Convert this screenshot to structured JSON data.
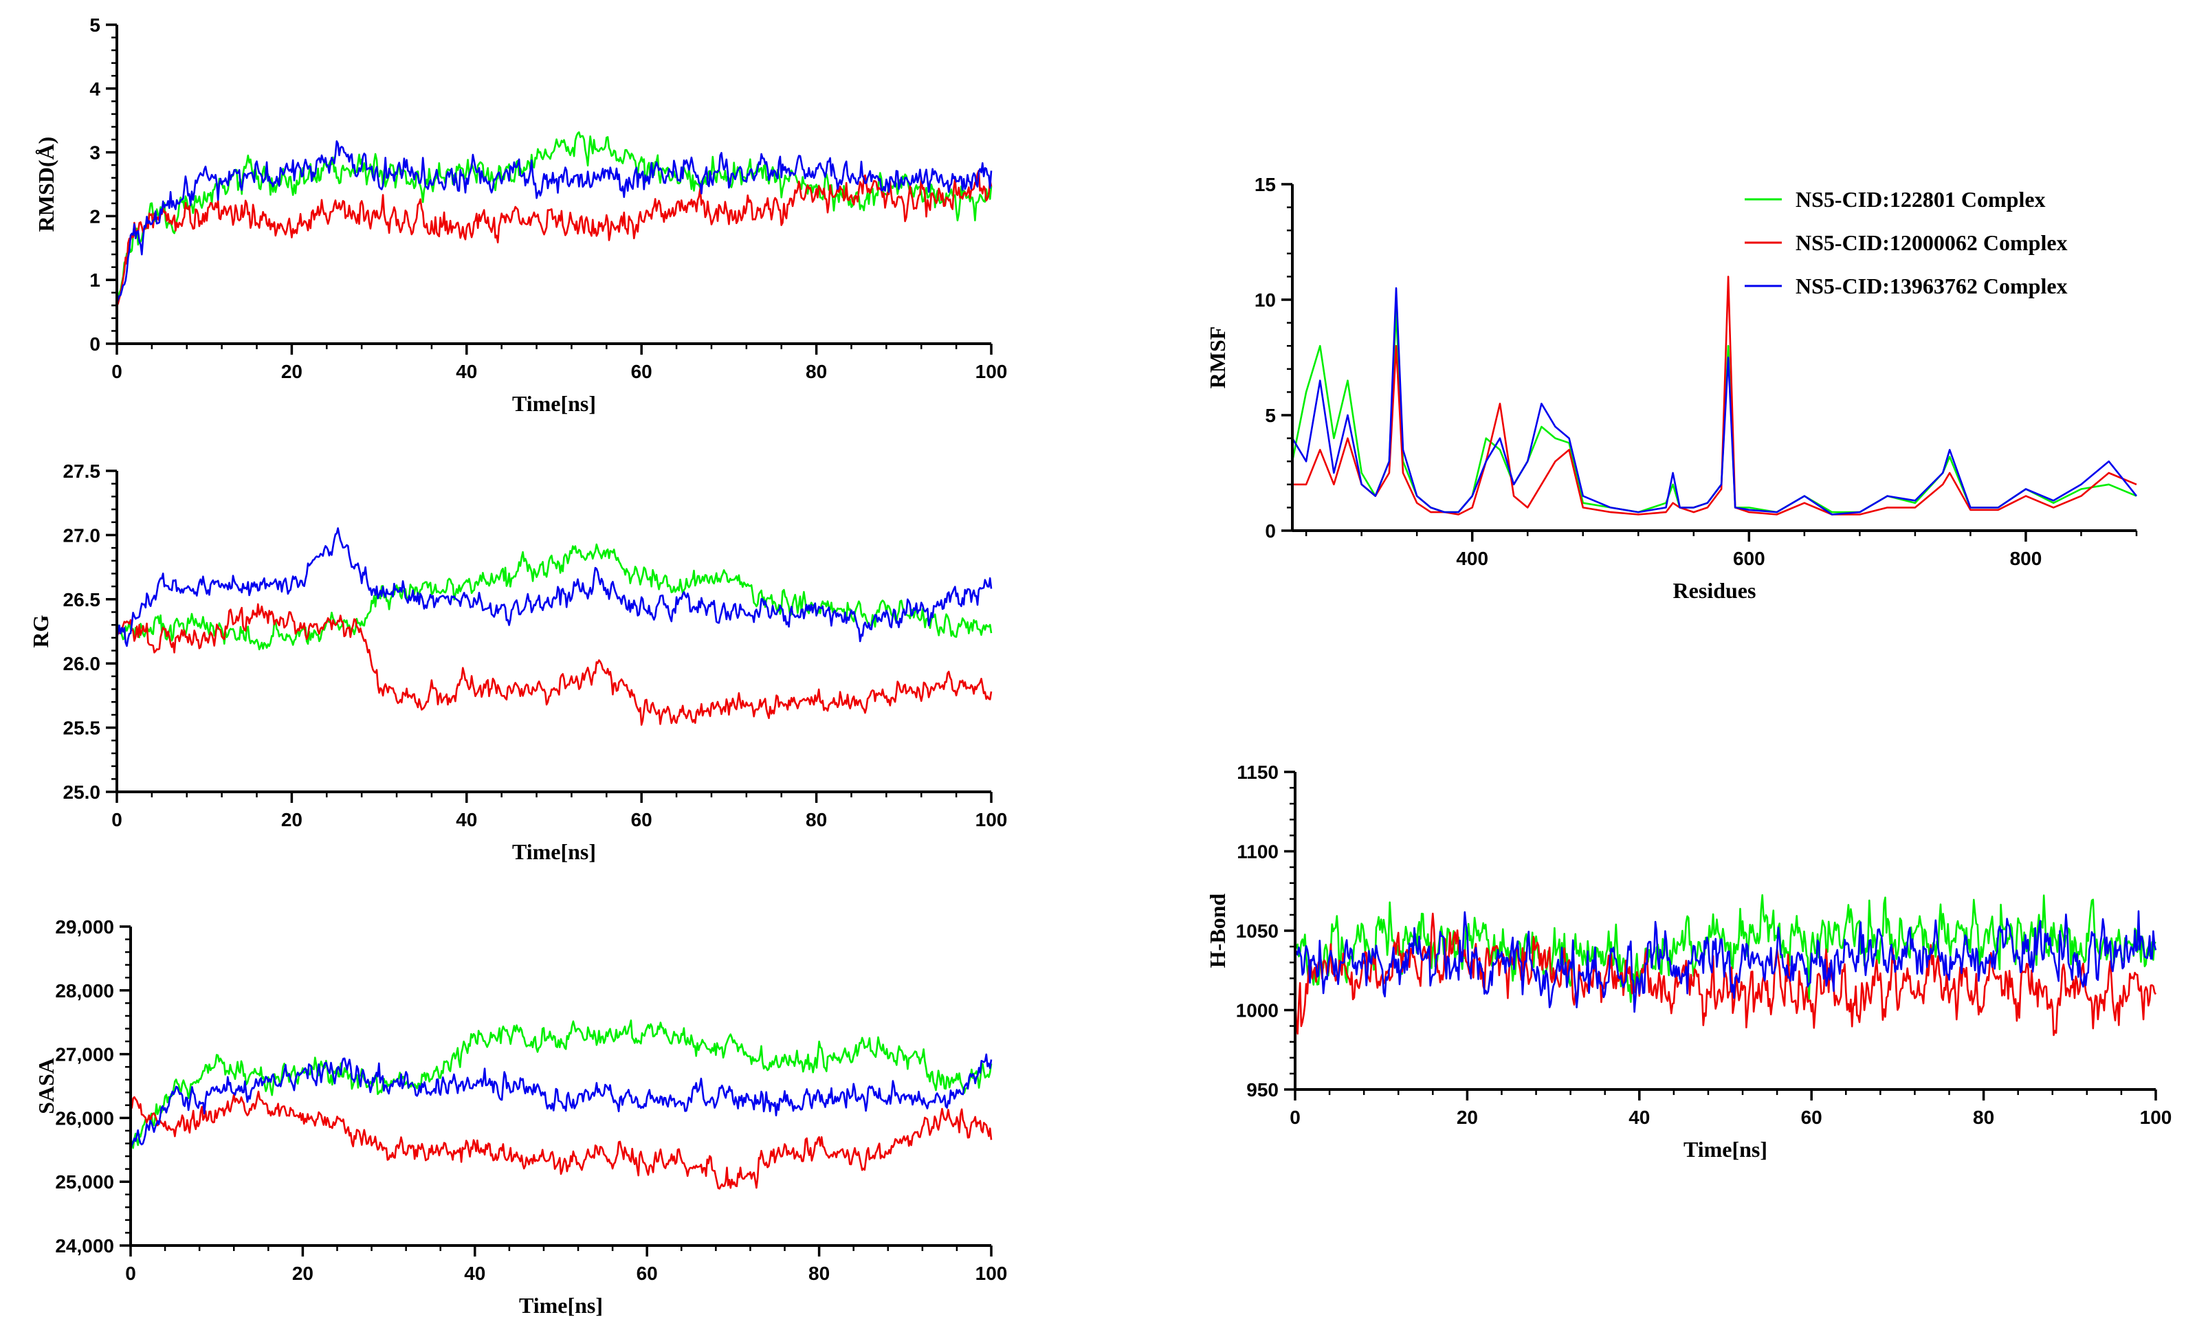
{
  "colors": {
    "green": "#00ee00",
    "red": "#ee0000",
    "blue": "#0000ee",
    "axis": "#000000"
  },
  "chart_data": [
    {
      "id": "rmsd",
      "type": "line",
      "xlabel": "Time[ns]",
      "ylabel": "RMSD(Å)",
      "xlim": [
        0,
        100
      ],
      "ylim": [
        0,
        5
      ],
      "xticks": [
        0,
        20,
        40,
        60,
        80,
        100
      ],
      "yticks": [
        0,
        1,
        2,
        3,
        4,
        5
      ],
      "ytick_labels": [
        "0",
        "1",
        "2",
        "3",
        "4",
        "5"
      ],
      "series": [
        {
          "color": "green",
          "x": [
            0,
            2,
            5,
            10,
            15,
            20,
            25,
            30,
            35,
            40,
            45,
            50,
            55,
            60,
            65,
            70,
            75,
            80,
            85,
            90,
            95,
            100
          ],
          "values": [
            0.6,
            1.7,
            2.0,
            2.3,
            2.6,
            2.5,
            2.8,
            2.7,
            2.6,
            2.7,
            2.7,
            3.0,
            3.2,
            2.8,
            2.6,
            2.7,
            2.6,
            2.4,
            2.3,
            2.4,
            2.3,
            2.3
          ]
        },
        {
          "color": "red",
          "x": [
            0,
            2,
            5,
            10,
            15,
            20,
            25,
            30,
            35,
            40,
            45,
            50,
            55,
            60,
            65,
            70,
            75,
            80,
            85,
            90,
            95,
            100
          ],
          "values": [
            0.6,
            1.8,
            1.9,
            2.1,
            2.0,
            1.9,
            2.0,
            2.0,
            1.9,
            1.8,
            1.9,
            1.9,
            1.7,
            2.0,
            2.2,
            2.0,
            2.1,
            2.3,
            2.4,
            2.3,
            2.3,
            2.5
          ]
        },
        {
          "color": "blue",
          "x": [
            0,
            2,
            5,
            10,
            15,
            20,
            25,
            30,
            35,
            40,
            45,
            50,
            55,
            60,
            65,
            70,
            75,
            80,
            85,
            90,
            95,
            100
          ],
          "values": [
            0.6,
            1.6,
            2.1,
            2.5,
            2.6,
            2.7,
            3.0,
            2.6,
            2.7,
            2.6,
            2.7,
            2.6,
            2.7,
            2.6,
            2.7,
            2.6,
            2.8,
            2.7,
            2.6,
            2.6,
            2.6,
            2.7
          ]
        }
      ]
    },
    {
      "id": "rg",
      "type": "line",
      "xlabel": "Time[ns]",
      "ylabel": "RG",
      "xlim": [
        0,
        100
      ],
      "ylim": [
        25.0,
        27.5
      ],
      "xticks": [
        0,
        20,
        40,
        60,
        80,
        100
      ],
      "yticks": [
        25.0,
        25.5,
        26.0,
        26.5,
        27.0,
        27.5
      ],
      "ytick_labels": [
        "25.0",
        "25.5",
        "26.0",
        "26.5",
        "27.0",
        "27.5"
      ],
      "series": [
        {
          "color": "green",
          "x": [
            0,
            5,
            10,
            15,
            20,
            25,
            28,
            30,
            35,
            40,
            45,
            50,
            55,
            60,
            65,
            70,
            75,
            80,
            85,
            90,
            95,
            100
          ],
          "values": [
            26.2,
            26.3,
            26.3,
            26.2,
            26.2,
            26.3,
            26.3,
            26.5,
            26.6,
            26.6,
            26.7,
            26.8,
            26.9,
            26.7,
            26.6,
            26.7,
            26.5,
            26.4,
            26.4,
            26.4,
            26.3,
            26.3
          ]
        },
        {
          "color": "red",
          "x": [
            0,
            5,
            10,
            15,
            20,
            25,
            28,
            30,
            35,
            40,
            45,
            50,
            55,
            60,
            65,
            70,
            75,
            80,
            85,
            90,
            95,
            100
          ],
          "values": [
            26.3,
            26.2,
            26.2,
            26.4,
            26.3,
            26.3,
            26.2,
            25.8,
            25.7,
            25.8,
            25.8,
            25.8,
            26.0,
            25.7,
            25.6,
            25.7,
            25.7,
            25.7,
            25.7,
            25.8,
            25.8,
            25.8
          ]
        },
        {
          "color": "blue",
          "x": [
            0,
            5,
            10,
            15,
            20,
            25,
            28,
            30,
            35,
            40,
            45,
            50,
            55,
            60,
            65,
            70,
            75,
            80,
            85,
            90,
            95,
            100
          ],
          "values": [
            26.2,
            26.6,
            26.6,
            26.6,
            26.6,
            27.0,
            26.7,
            26.6,
            26.5,
            26.5,
            26.4,
            26.5,
            26.6,
            26.4,
            26.5,
            26.4,
            26.4,
            26.4,
            26.3,
            26.4,
            26.5,
            26.6
          ]
        }
      ]
    },
    {
      "id": "sasa",
      "type": "line",
      "xlabel": "Time[ns]",
      "ylabel": "SASA",
      "xlim": [
        0,
        100
      ],
      "ylim": [
        24000,
        29000
      ],
      "xticks": [
        0,
        20,
        40,
        60,
        80,
        100
      ],
      "yticks": [
        24000,
        25000,
        26000,
        27000,
        28000,
        29000
      ],
      "ytick_labels": [
        "24,000",
        "25,000",
        "26,000",
        "27,000",
        "28,000",
        "29,000"
      ],
      "series": [
        {
          "color": "green",
          "x": [
            0,
            5,
            10,
            15,
            20,
            25,
            30,
            35,
            40,
            45,
            50,
            55,
            60,
            65,
            70,
            75,
            80,
            85,
            90,
            95,
            100
          ],
          "values": [
            25500,
            26500,
            26800,
            26600,
            26700,
            26700,
            26500,
            26600,
            27200,
            27300,
            27200,
            27300,
            27300,
            27200,
            27100,
            26800,
            26900,
            27100,
            27000,
            26500,
            26800
          ]
        },
        {
          "color": "red",
          "x": [
            0,
            5,
            10,
            15,
            20,
            25,
            30,
            35,
            40,
            45,
            50,
            55,
            60,
            65,
            70,
            75,
            80,
            85,
            90,
            95,
            100
          ],
          "values": [
            26200,
            25800,
            26100,
            26200,
            26000,
            25900,
            25500,
            25400,
            25500,
            25400,
            25300,
            25500,
            25300,
            25300,
            25000,
            25400,
            25500,
            25300,
            25700,
            26000,
            25900
          ]
        },
        {
          "color": "blue",
          "x": [
            0,
            5,
            10,
            15,
            20,
            25,
            30,
            35,
            40,
            45,
            50,
            55,
            60,
            65,
            70,
            75,
            80,
            85,
            90,
            95,
            100
          ],
          "values": [
            25600,
            26300,
            26400,
            26500,
            26700,
            26800,
            26500,
            26500,
            26500,
            26500,
            26200,
            26400,
            26300,
            26300,
            26300,
            26300,
            26300,
            26400,
            26300,
            26300,
            26900
          ]
        }
      ]
    },
    {
      "id": "rmsf",
      "type": "line",
      "xlabel": "Residues",
      "ylabel": "RMSF",
      "xlim": [
        270,
        880
      ],
      "ylim": [
        0,
        15
      ],
      "xticks": [
        400,
        600,
        800
      ],
      "yticks": [
        0,
        5,
        10,
        15
      ],
      "ytick_labels": [
        "0",
        "5",
        "10",
        "15"
      ],
      "legend": {
        "position": "top-right",
        "entries": [
          {
            "label": "NS5-CID:122801 Complex",
            "color": "green"
          },
          {
            "label": "NS5-CID:12000062 Complex",
            "color": "red"
          },
          {
            "label": "NS5-CID:13963762 Complex",
            "color": "blue"
          }
        ]
      },
      "series": [
        {
          "color": "green",
          "x": [
            270,
            280,
            290,
            300,
            310,
            320,
            330,
            340,
            345,
            350,
            360,
            370,
            380,
            390,
            400,
            410,
            420,
            430,
            440,
            450,
            460,
            470,
            480,
            500,
            520,
            540,
            545,
            550,
            560,
            570,
            580,
            585,
            590,
            600,
            620,
            640,
            660,
            680,
            700,
            720,
            740,
            745,
            760,
            780,
            800,
            820,
            840,
            860,
            880
          ],
          "values": [
            3,
            6,
            8,
            4,
            6.5,
            2.5,
            1.5,
            3,
            9.5,
            3,
            1.5,
            1,
            0.8,
            0.8,
            1.5,
            4,
            3.5,
            2,
            3,
            4.5,
            4,
            3.8,
            1.2,
            1,
            0.8,
            1.2,
            2,
            1,
            1,
            1.2,
            2,
            8,
            1,
            1,
            0.8,
            1.5,
            0.8,
            0.8,
            1.5,
            1.2,
            2.5,
            3.2,
            1,
            1,
            1.8,
            1.2,
            1.8,
            2,
            1.5
          ]
        },
        {
          "color": "red",
          "x": [
            270,
            280,
            290,
            300,
            310,
            320,
            330,
            340,
            345,
            350,
            360,
            370,
            380,
            390,
            400,
            410,
            420,
            430,
            440,
            450,
            460,
            470,
            480,
            500,
            520,
            540,
            545,
            550,
            560,
            570,
            580,
            585,
            590,
            600,
            620,
            640,
            660,
            680,
            700,
            720,
            740,
            745,
            760,
            780,
            800,
            820,
            840,
            860,
            880
          ],
          "values": [
            2,
            2,
            3.5,
            2,
            4,
            2,
            1.5,
            2.5,
            8,
            2.5,
            1.2,
            0.8,
            0.8,
            0.7,
            1,
            3,
            5.5,
            1.5,
            1,
            2,
            3,
            3.5,
            1,
            0.8,
            0.7,
            0.8,
            1.2,
            1,
            0.8,
            1,
            1.8,
            11,
            1,
            0.8,
            0.7,
            1.2,
            0.7,
            0.7,
            1,
            1,
            2,
            2.5,
            0.9,
            0.9,
            1.5,
            1,
            1.5,
            2.5,
            2
          ]
        },
        {
          "color": "blue",
          "x": [
            270,
            280,
            290,
            300,
            310,
            320,
            330,
            340,
            345,
            350,
            360,
            370,
            380,
            390,
            400,
            410,
            420,
            430,
            440,
            450,
            460,
            470,
            480,
            500,
            520,
            540,
            545,
            550,
            560,
            570,
            580,
            585,
            590,
            600,
            620,
            640,
            660,
            680,
            700,
            720,
            740,
            745,
            760,
            780,
            800,
            820,
            840,
            860,
            880
          ],
          "values": [
            4,
            3,
            6.5,
            2.5,
            5,
            2,
            1.5,
            3,
            10.5,
            3.5,
            1.5,
            1,
            0.8,
            0.8,
            1.5,
            3,
            4,
            2,
            3,
            5.5,
            4.5,
            4,
            1.5,
            1,
            0.8,
            1,
            2.5,
            1,
            1,
            1.2,
            2,
            7.5,
            1,
            0.9,
            0.8,
            1.5,
            0.7,
            0.8,
            1.5,
            1.3,
            2.5,
            3.5,
            1,
            1,
            1.8,
            1.3,
            2,
            3,
            1.5
          ]
        }
      ]
    },
    {
      "id": "hbond",
      "type": "line",
      "xlabel": "Time[ns]",
      "ylabel": "H-Bond",
      "xlim": [
        0,
        100
      ],
      "ylim": [
        950,
        1150
      ],
      "xticks": [
        0,
        20,
        40,
        60,
        80,
        100
      ],
      "yticks": [
        950,
        1000,
        1050,
        1100,
        1150
      ],
      "ytick_labels": [
        "950",
        "1000",
        "1050",
        "1100",
        "1150"
      ],
      "series": [
        {
          "color": "green",
          "x": [
            0,
            5,
            10,
            15,
            20,
            25,
            30,
            35,
            40,
            45,
            50,
            55,
            60,
            65,
            70,
            75,
            80,
            85,
            90,
            95,
            100
          ],
          "values": [
            1030,
            1040,
            1045,
            1045,
            1045,
            1040,
            1035,
            1035,
            1030,
            1040,
            1045,
            1045,
            1045,
            1050,
            1045,
            1045,
            1045,
            1045,
            1045,
            1040,
            1040
          ]
        },
        {
          "color": "red",
          "x": [
            0,
            5,
            10,
            15,
            20,
            25,
            30,
            35,
            40,
            45,
            50,
            55,
            60,
            65,
            70,
            75,
            80,
            85,
            90,
            95,
            100
          ],
          "values": [
            1020,
            1025,
            1030,
            1030,
            1035,
            1030,
            1025,
            1020,
            1020,
            1015,
            1015,
            1015,
            1015,
            1015,
            1015,
            1015,
            1015,
            1015,
            1015,
            1015,
            1010
          ]
        },
        {
          "color": "blue",
          "x": [
            0,
            5,
            10,
            15,
            20,
            25,
            30,
            35,
            40,
            45,
            50,
            55,
            60,
            65,
            70,
            75,
            80,
            85,
            90,
            95,
            100
          ],
          "values": [
            1025,
            1030,
            1035,
            1030,
            1030,
            1030,
            1025,
            1025,
            1025,
            1030,
            1030,
            1030,
            1030,
            1035,
            1035,
            1035,
            1035,
            1035,
            1035,
            1035,
            1035
          ]
        }
      ]
    }
  ]
}
